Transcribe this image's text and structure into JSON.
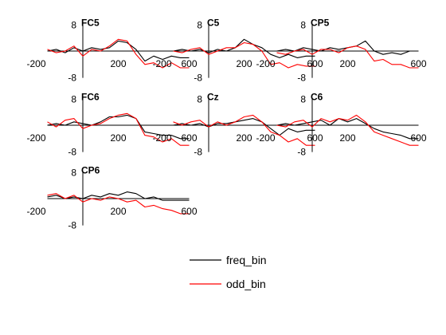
{
  "chart_data": {
    "type": "line",
    "xlabel": "",
    "ylabel": "",
    "xlim": [
      -200,
      600
    ],
    "ylim": [
      -8,
      8
    ],
    "x_ticks": [
      "-200",
      "200",
      "600"
    ],
    "y_ticks": [
      "8",
      "-8"
    ],
    "grid": false,
    "legend_position": "bottom-center",
    "legend": [
      {
        "name": "freq_bin",
        "color": "#000000"
      },
      {
        "name": "odd_bin",
        "color": "#ff0000"
      }
    ],
    "x": [
      -200,
      -150,
      -100,
      -50,
      0,
      50,
      100,
      150,
      200,
      250,
      300,
      350,
      400,
      450,
      500,
      550,
      600
    ],
    "panels": [
      {
        "label": "FC5",
        "series": [
          {
            "name": "freq_bin",
            "color": "#000000",
            "values": [
              0,
              0.5,
              -0.5,
              1,
              0,
              1,
              0.5,
              1,
              3,
              2.5,
              0.5,
              -3,
              -1.5,
              -2.5,
              -1.5,
              -2,
              -2
            ]
          },
          {
            "name": "odd_bin",
            "color": "#ff0000",
            "values": [
              0.5,
              -0.5,
              0,
              1.5,
              -1.5,
              0.5,
              0,
              1.5,
              3.5,
              3,
              -1,
              -4,
              -3.5,
              -5,
              -3.5,
              -5,
              -5
            ]
          }
        ]
      },
      {
        "label": "C5",
        "series": [
          {
            "name": "freq_bin",
            "color": "#000000",
            "values": [
              0,
              0.5,
              0,
              0.5,
              -0.5,
              0.5,
              0,
              1,
              3.5,
              2,
              1,
              -1,
              -2,
              -1,
              -2,
              -1.5,
              -1.5
            ]
          },
          {
            "name": "odd_bin",
            "color": "#ff0000",
            "values": [
              0,
              -0.5,
              0.5,
              1,
              -1,
              0,
              1,
              1,
              2.5,
              2,
              0,
              -4,
              -3.5,
              -5,
              -4,
              -4.5,
              -4.5
            ]
          }
        ]
      },
      {
        "label": "CP5",
        "series": [
          {
            "name": "freq_bin",
            "color": "#000000",
            "values": [
              0,
              0.5,
              0,
              1,
              0.5,
              0,
              1,
              0.5,
              1,
              1.5,
              3,
              0,
              -1,
              -0.5,
              -1,
              0,
              0
            ]
          },
          {
            "name": "odd_bin",
            "color": "#ff0000",
            "values": [
              -0.5,
              -1,
              0,
              0.5,
              -1,
              0.5,
              0.5,
              -0.5,
              1,
              1.5,
              0.5,
              -3,
              -2.5,
              -4,
              -4,
              -5,
              -5
            ]
          }
        ]
      },
      {
        "label": "FC6",
        "series": [
          {
            "name": "freq_bin",
            "color": "#000000",
            "values": [
              0,
              0.5,
              0,
              1,
              0.5,
              0,
              1,
              2.5,
              2.5,
              3,
              2,
              -2,
              -2.5,
              -3,
              -3,
              -4,
              -4
            ]
          },
          {
            "name": "odd_bin",
            "color": "#ff0000",
            "values": [
              1,
              -0.5,
              1.5,
              2,
              -1,
              0,
              0.5,
              2,
              3,
              3.5,
              2,
              -3,
              -3.5,
              -5,
              -4,
              -6,
              -6
            ]
          }
        ]
      },
      {
        "label": "Cz",
        "series": [
          {
            "name": "freq_bin",
            "color": "#000000",
            "values": [
              0,
              0.5,
              0,
              0.5,
              -0.5,
              0.5,
              0.5,
              1,
              1.5,
              2,
              1,
              -1,
              -3,
              -1,
              -2,
              -1.5,
              -1.5
            ]
          },
          {
            "name": "odd_bin",
            "color": "#ff0000",
            "values": [
              1,
              0,
              1,
              1.5,
              -0.5,
              1,
              0,
              1,
              2.5,
              3,
              1,
              -2,
              -3,
              -5,
              -4,
              -6,
              -6
            ]
          }
        ]
      },
      {
        "label": "C6",
        "series": [
          {
            "name": "freq_bin",
            "color": "#000000",
            "values": [
              0,
              0.5,
              0,
              0.5,
              1,
              1.5,
              0,
              2,
              1,
              2,
              0.5,
              -1,
              -2,
              -2.5,
              -3,
              -4,
              -4
            ]
          },
          {
            "name": "odd_bin",
            "color": "#ff0000",
            "values": [
              0,
              -0.5,
              1,
              1.5,
              -0.5,
              2,
              1,
              2,
              1.5,
              3,
              1,
              -2,
              -3,
              -4,
              -5,
              -6,
              -6
            ]
          }
        ]
      },
      {
        "label": "CP6",
        "series": [
          {
            "name": "freq_bin",
            "color": "#000000",
            "values": [
              0.5,
              1,
              0,
              0.5,
              0,
              1,
              0.5,
              1.5,
              1,
              2,
              1.5,
              0,
              0.5,
              -0.5,
              -0.5,
              -0.5,
              -0.5
            ]
          },
          {
            "name": "odd_bin",
            "color": "#ff0000",
            "values": [
              1,
              1.5,
              0,
              1,
              -1,
              0,
              -0.5,
              0.5,
              0,
              -1,
              -0.5,
              -2.5,
              -2,
              -3,
              -3.5,
              -4.5,
              -4.5
            ]
          }
        ]
      }
    ]
  }
}
